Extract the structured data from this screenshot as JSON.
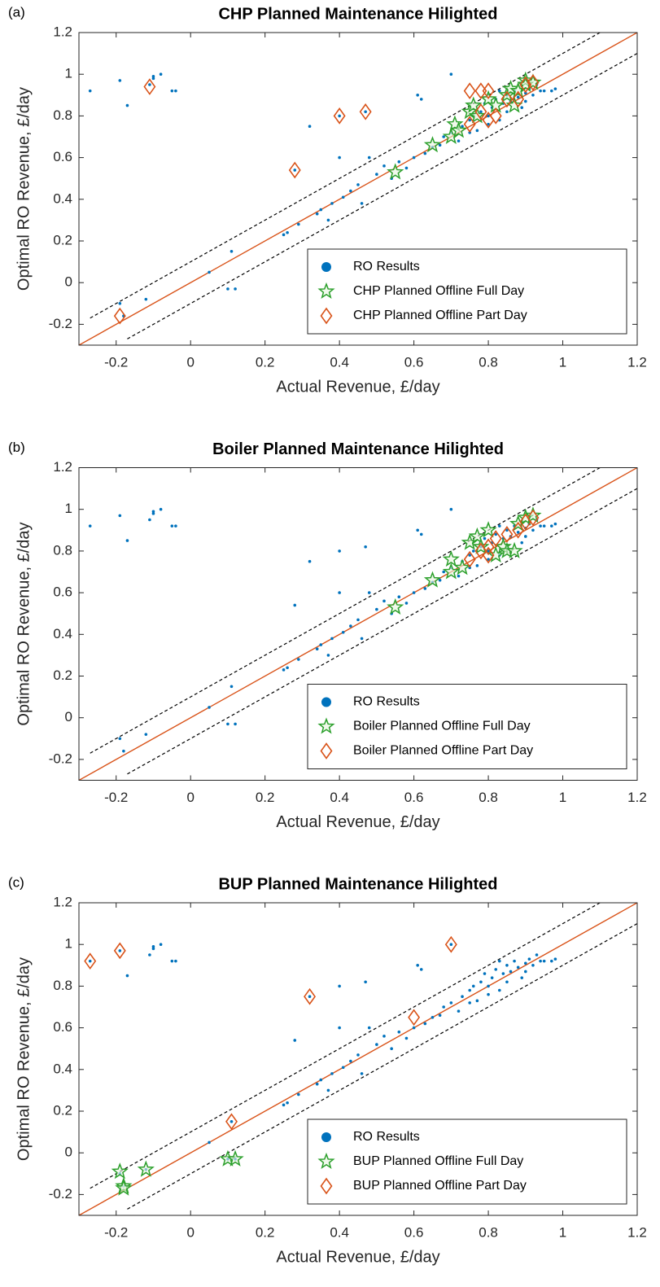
{
  "chart_data": [
    {
      "type": "scatter",
      "label": "(a)",
      "title": "CHP Planned Maintenance Hilighted",
      "x_label": "Actual Revenue, £/day",
      "y_label": "Optimal RO Revenue, £/day",
      "xlim": [
        -0.3,
        1.2
      ],
      "ylim": [
        -0.3,
        1.2
      ],
      "xticks": [
        -0.2,
        0,
        0.2,
        0.4,
        0.6,
        0.8,
        1,
        1.2
      ],
      "yticks": [
        -0.2,
        0,
        0.2,
        0.4,
        0.6,
        0.8,
        1,
        1.2
      ],
      "grid": false,
      "legend": "southeast",
      "lines": [
        {
          "x": [
            -0.3,
            1.2
          ],
          "y": [
            -0.3,
            1.2
          ],
          "color": "#d95319",
          "dash": false
        },
        {
          "x": [
            -0.27,
            1.1
          ],
          "y": [
            -0.17,
            1.2
          ],
          "color": "#000000",
          "dash": true
        },
        {
          "x": [
            -0.17,
            1.2
          ],
          "y": [
            -0.27,
            1.1
          ],
          "color": "#000000",
          "dash": true
        }
      ],
      "series": [
        {
          "name": "RO Results",
          "color": "#0072bd",
          "marker": "dot",
          "x": [
            -0.27,
            -0.19,
            -0.17,
            -0.11,
            -0.1,
            -0.1,
            -0.08,
            -0.05,
            -0.04,
            -0.19,
            -0.18,
            -0.12,
            0.05,
            0.1,
            0.11,
            0.12,
            0.25,
            0.26,
            0.28,
            0.29,
            0.32,
            0.34,
            0.35,
            0.37,
            0.38,
            0.4,
            0.4,
            0.41,
            0.43,
            0.45,
            0.46,
            0.47,
            0.48,
            0.5,
            0.52,
            0.54,
            0.56,
            0.58,
            0.6,
            0.61,
            0.62,
            0.63,
            0.65,
            0.67,
            0.68,
            0.7,
            0.7,
            0.72,
            0.73,
            0.75,
            0.76,
            0.77,
            0.78,
            0.79,
            0.8,
            0.81,
            0.82,
            0.83,
            0.84,
            0.85,
            0.86,
            0.87,
            0.88,
            0.89,
            0.9,
            0.91,
            0.92,
            0.93,
            0.94,
            0.95,
            0.97,
            0.98,
            0.85,
            0.8,
            0.9,
            0.75,
            0.83
          ],
          "values": [
            0.92,
            0.97,
            0.85,
            0.95,
            0.98,
            0.99,
            1.0,
            0.92,
            0.92,
            -0.1,
            -0.16,
            -0.08,
            0.05,
            -0.03,
            0.15,
            -0.03,
            0.23,
            0.24,
            0.54,
            0.28,
            0.75,
            0.33,
            0.35,
            0.3,
            0.38,
            0.8,
            0.6,
            0.41,
            0.44,
            0.47,
            0.38,
            0.82,
            0.6,
            0.52,
            0.56,
            0.5,
            0.58,
            0.55,
            0.6,
            0.9,
            0.88,
            0.62,
            0.65,
            0.66,
            0.7,
            1.0,
            0.72,
            0.68,
            0.75,
            0.78,
            0.8,
            0.73,
            0.82,
            0.86,
            0.8,
            0.84,
            0.88,
            0.78,
            0.86,
            0.9,
            0.87,
            0.92,
            0.89,
            0.84,
            0.91,
            0.93,
            0.9,
            0.95,
            0.92,
            0.92,
            0.92,
            0.93,
            0.82,
            0.76,
            0.87,
            0.72,
            0.92
          ]
        },
        {
          "name": "CHP Planned Offline Full Day",
          "color": "#2ca02c",
          "marker": "star",
          "x": [
            0.55,
            0.65,
            0.7,
            0.71,
            0.72,
            0.75,
            0.76,
            0.77,
            0.8,
            0.82,
            0.85,
            0.86,
            0.88,
            0.9,
            0.9,
            0.92,
            0.87
          ],
          "values": [
            0.53,
            0.66,
            0.7,
            0.76,
            0.73,
            0.82,
            0.85,
            0.8,
            0.88,
            0.85,
            0.9,
            0.93,
            0.92,
            0.97,
            0.95,
            0.96,
            0.85
          ]
        },
        {
          "name": "CHP Planned Offline Part Day",
          "color": "#d95319",
          "marker": "diamond",
          "x": [
            -0.19,
            -0.11,
            0.28,
            0.4,
            0.47,
            0.75,
            0.78,
            0.8,
            0.75,
            0.78,
            0.82,
            0.85,
            0.88,
            0.9,
            0.92,
            0.8
          ],
          "values": [
            -0.16,
            0.94,
            0.54,
            0.8,
            0.82,
            0.92,
            0.92,
            0.92,
            0.76,
            0.82,
            0.8,
            0.88,
            0.88,
            0.95,
            0.96,
            0.78
          ]
        }
      ]
    },
    {
      "type": "scatter",
      "label": "(b)",
      "title": "Boiler Planned Maintenance Hilighted",
      "x_label": "Actual Revenue, £/day",
      "y_label": "Optimal RO Revenue, £/day",
      "xlim": [
        -0.3,
        1.2
      ],
      "ylim": [
        -0.3,
        1.2
      ],
      "xticks": [
        -0.2,
        0,
        0.2,
        0.4,
        0.6,
        0.8,
        1,
        1.2
      ],
      "yticks": [
        -0.2,
        0,
        0.2,
        0.4,
        0.6,
        0.8,
        1,
        1.2
      ],
      "grid": false,
      "legend": "southeast",
      "lines": [
        {
          "x": [
            -0.3,
            1.2
          ],
          "y": [
            -0.3,
            1.2
          ],
          "color": "#d95319",
          "dash": false
        },
        {
          "x": [
            -0.27,
            1.1
          ],
          "y": [
            -0.17,
            1.2
          ],
          "color": "#000000",
          "dash": true
        },
        {
          "x": [
            -0.17,
            1.2
          ],
          "y": [
            -0.27,
            1.1
          ],
          "color": "#000000",
          "dash": true
        }
      ],
      "series": [
        {
          "name": "RO Results",
          "color": "#0072bd",
          "marker": "dot",
          "x": [
            -0.27,
            -0.19,
            -0.17,
            -0.11,
            -0.1,
            -0.1,
            -0.08,
            -0.05,
            -0.04,
            -0.19,
            -0.18,
            -0.12,
            0.05,
            0.1,
            0.11,
            0.12,
            0.25,
            0.26,
            0.28,
            0.29,
            0.32,
            0.34,
            0.35,
            0.37,
            0.38,
            0.4,
            0.4,
            0.41,
            0.43,
            0.45,
            0.46,
            0.47,
            0.48,
            0.5,
            0.52,
            0.54,
            0.56,
            0.58,
            0.6,
            0.61,
            0.62,
            0.63,
            0.65,
            0.67,
            0.68,
            0.7,
            0.7,
            0.72,
            0.73,
            0.75,
            0.76,
            0.77,
            0.78,
            0.79,
            0.8,
            0.81,
            0.82,
            0.83,
            0.84,
            0.85,
            0.86,
            0.87,
            0.88,
            0.89,
            0.9,
            0.91,
            0.92,
            0.93,
            0.94,
            0.95,
            0.97,
            0.98,
            0.85,
            0.8,
            0.9,
            0.75,
            0.83
          ],
          "values": [
            0.92,
            0.97,
            0.85,
            0.95,
            0.98,
            0.99,
            1.0,
            0.92,
            0.92,
            -0.1,
            -0.16,
            -0.08,
            0.05,
            -0.03,
            0.15,
            -0.03,
            0.23,
            0.24,
            0.54,
            0.28,
            0.75,
            0.33,
            0.35,
            0.3,
            0.38,
            0.8,
            0.6,
            0.41,
            0.44,
            0.47,
            0.38,
            0.82,
            0.6,
            0.52,
            0.56,
            0.5,
            0.58,
            0.55,
            0.6,
            0.9,
            0.88,
            0.62,
            0.65,
            0.66,
            0.7,
            1.0,
            0.72,
            0.68,
            0.75,
            0.78,
            0.8,
            0.73,
            0.82,
            0.86,
            0.8,
            0.84,
            0.88,
            0.78,
            0.86,
            0.9,
            0.87,
            0.92,
            0.89,
            0.84,
            0.91,
            0.93,
            0.9,
            0.95,
            0.92,
            0.92,
            0.92,
            0.93,
            0.82,
            0.76,
            0.87,
            0.72,
            0.92
          ]
        },
        {
          "name": "Boiler Planned Offline Full Day",
          "color": "#2ca02c",
          "marker": "star",
          "x": [
            0.55,
            0.65,
            0.7,
            0.7,
            0.73,
            0.75,
            0.77,
            0.8,
            0.82,
            0.84,
            0.85,
            0.87,
            0.88,
            0.9,
            0.92,
            0.78
          ],
          "values": [
            0.53,
            0.66,
            0.7,
            0.76,
            0.72,
            0.84,
            0.87,
            0.9,
            0.78,
            0.82,
            0.8,
            0.8,
            0.93,
            0.96,
            0.97,
            0.82
          ]
        },
        {
          "name": "Boiler Planned Offline Part Day",
          "color": "#d95319",
          "marker": "diamond",
          "x": [
            0.75,
            0.78,
            0.8,
            0.82,
            0.85,
            0.88,
            0.9,
            0.92,
            0.8
          ],
          "values": [
            0.76,
            0.8,
            0.78,
            0.86,
            0.88,
            0.9,
            0.94,
            0.96,
            0.82
          ]
        }
      ]
    },
    {
      "type": "scatter",
      "label": "(c)",
      "title": "BUP Planned Maintenance Hilighted",
      "x_label": "Actual Revenue, £/day",
      "y_label": "Optimal RO Revenue, £/day",
      "xlim": [
        -0.3,
        1.2
      ],
      "ylim": [
        -0.3,
        1.2
      ],
      "xticks": [
        -0.2,
        0,
        0.2,
        0.4,
        0.6,
        0.8,
        1,
        1.2
      ],
      "yticks": [
        -0.2,
        0,
        0.2,
        0.4,
        0.6,
        0.8,
        1,
        1.2
      ],
      "grid": false,
      "legend": "southeast",
      "lines": [
        {
          "x": [
            -0.3,
            1.2
          ],
          "y": [
            -0.3,
            1.2
          ],
          "color": "#d95319",
          "dash": false
        },
        {
          "x": [
            -0.27,
            1.1
          ],
          "y": [
            -0.17,
            1.2
          ],
          "color": "#000000",
          "dash": true
        },
        {
          "x": [
            -0.17,
            1.2
          ],
          "y": [
            -0.27,
            1.1
          ],
          "color": "#000000",
          "dash": true
        }
      ],
      "series": [
        {
          "name": "RO Results",
          "color": "#0072bd",
          "marker": "dot",
          "x": [
            -0.27,
            -0.19,
            -0.17,
            -0.11,
            -0.1,
            -0.1,
            -0.08,
            -0.05,
            -0.04,
            -0.19,
            -0.18,
            -0.12,
            0.05,
            0.1,
            0.11,
            0.12,
            0.25,
            0.26,
            0.28,
            0.29,
            0.32,
            0.34,
            0.35,
            0.37,
            0.38,
            0.4,
            0.4,
            0.41,
            0.43,
            0.45,
            0.46,
            0.47,
            0.48,
            0.5,
            0.52,
            0.54,
            0.56,
            0.58,
            0.6,
            0.61,
            0.62,
            0.63,
            0.65,
            0.67,
            0.68,
            0.7,
            0.7,
            0.72,
            0.73,
            0.75,
            0.76,
            0.77,
            0.78,
            0.79,
            0.8,
            0.81,
            0.82,
            0.83,
            0.84,
            0.85,
            0.86,
            0.87,
            0.88,
            0.89,
            0.9,
            0.91,
            0.92,
            0.93,
            0.94,
            0.95,
            0.97,
            0.98,
            0.85,
            0.8,
            0.9,
            0.75,
            0.83
          ],
          "values": [
            0.92,
            0.97,
            0.85,
            0.95,
            0.98,
            0.99,
            1.0,
            0.92,
            0.92,
            -0.1,
            -0.16,
            -0.08,
            0.05,
            -0.03,
            0.15,
            -0.03,
            0.23,
            0.24,
            0.54,
            0.28,
            0.75,
            0.33,
            0.35,
            0.3,
            0.38,
            0.8,
            0.6,
            0.41,
            0.44,
            0.47,
            0.38,
            0.82,
            0.6,
            0.52,
            0.56,
            0.5,
            0.58,
            0.55,
            0.6,
            0.9,
            0.88,
            0.62,
            0.65,
            0.66,
            0.7,
            1.0,
            0.72,
            0.68,
            0.75,
            0.78,
            0.8,
            0.73,
            0.82,
            0.86,
            0.8,
            0.84,
            0.88,
            0.78,
            0.86,
            0.9,
            0.87,
            0.92,
            0.89,
            0.84,
            0.91,
            0.93,
            0.9,
            0.95,
            0.92,
            0.92,
            0.92,
            0.93,
            0.82,
            0.76,
            0.87,
            0.72,
            0.92
          ]
        },
        {
          "name": "BUP Planned Offline Full Day",
          "color": "#2ca02c",
          "marker": "star",
          "x": [
            -0.19,
            -0.18,
            -0.18,
            -0.12,
            0.1,
            0.12
          ],
          "values": [
            -0.09,
            -0.16,
            -0.17,
            -0.08,
            -0.03,
            -0.03
          ]
        },
        {
          "name": "BUP Planned Offline Part Day",
          "color": "#d95319",
          "marker": "diamond",
          "x": [
            -0.27,
            -0.19,
            0.11,
            0.32,
            0.6,
            0.7
          ],
          "values": [
            0.92,
            0.97,
            0.15,
            0.75,
            0.65,
            1.0
          ]
        }
      ]
    }
  ]
}
